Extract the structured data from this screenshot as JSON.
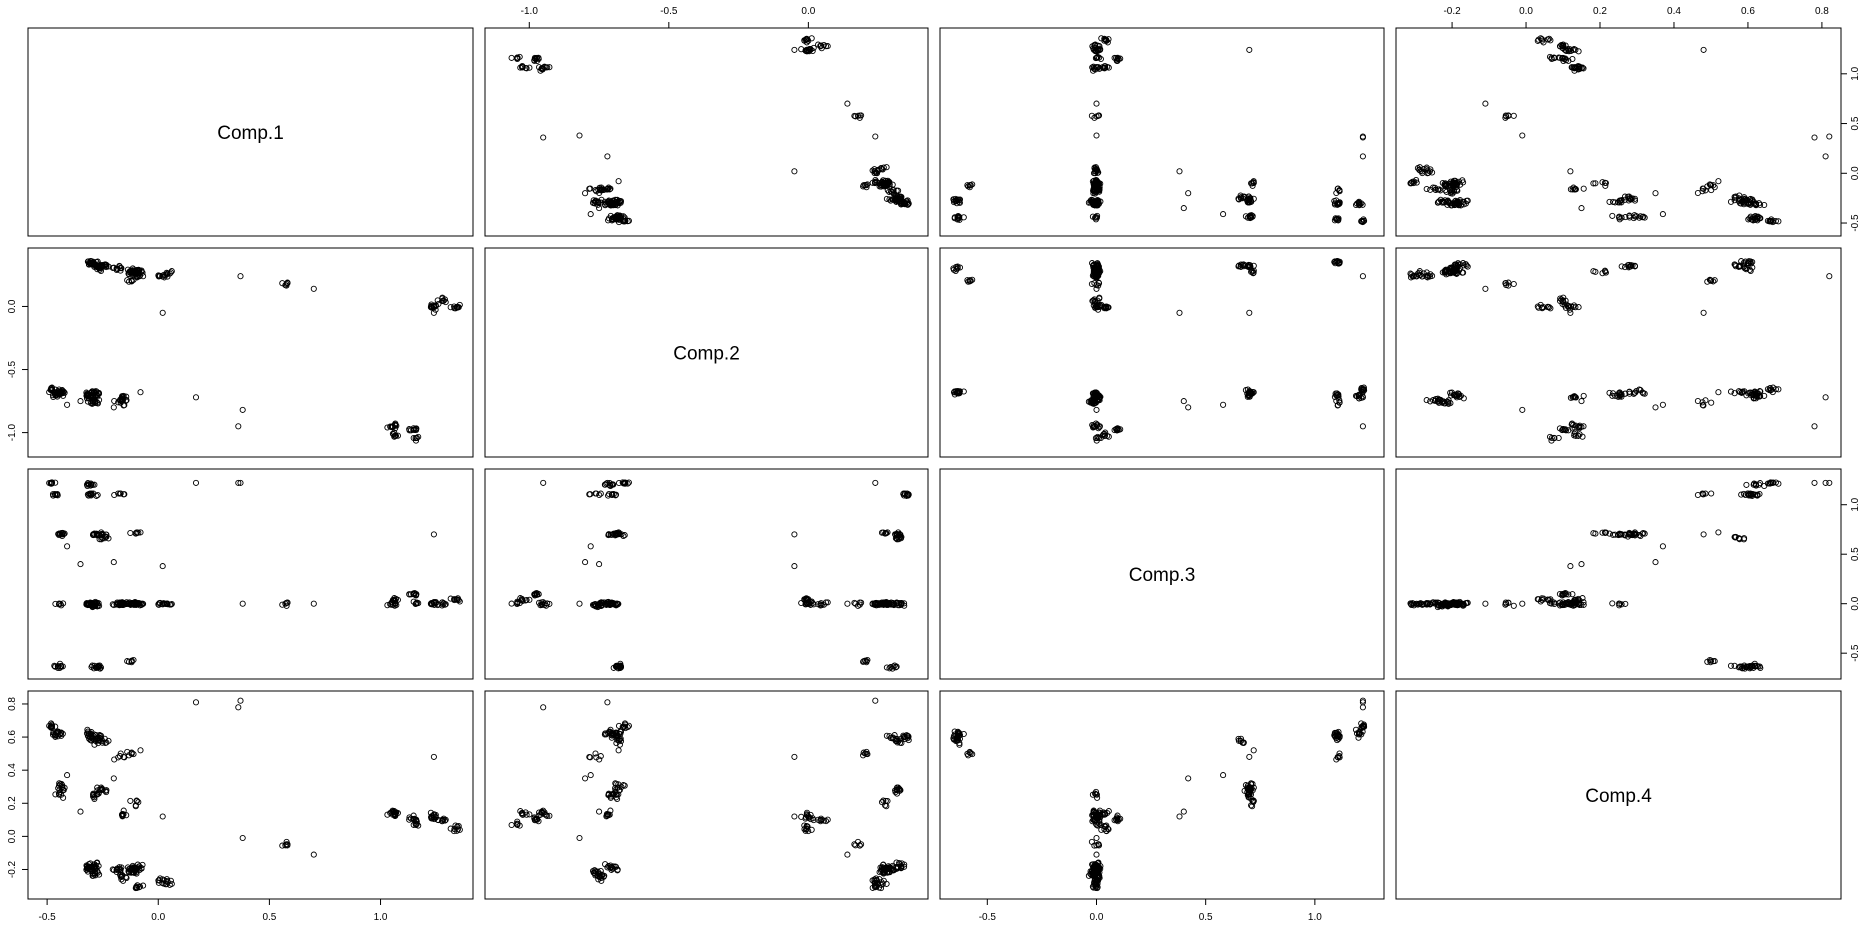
{
  "chart_data": {
    "type": "scatter",
    "variables": [
      "Comp.1",
      "Comp.2",
      "Comp.3",
      "Comp.4"
    ],
    "ranges": {
      "Comp.1": [
        -0.55,
        1.38
      ],
      "Comp.2": [
        -1.13,
        0.4
      ],
      "Comp.3": [
        -0.68,
        1.28
      ],
      "Comp.4": [
        -0.33,
        0.83
      ]
    },
    "ticks": {
      "Comp.1": [
        -0.5,
        0.0,
        0.5,
        1.0
      ],
      "Comp.2": [
        -1.0,
        -0.5,
        0.0
      ],
      "Comp.3": [
        -0.5,
        0.0,
        0.5,
        1.0
      ],
      "Comp.4": [
        -0.2,
        0.0,
        0.2,
        0.4,
        0.6,
        0.8
      ]
    },
    "tick_labels": {
      "Comp.1": [
        "-0.5",
        "0.0",
        "0.5",
        "1.0"
      ],
      "Comp.2": [
        "-1.0",
        "-0.5",
        "0.0"
      ],
      "Comp.3": [
        "-0.5",
        "0.0",
        "0.5",
        "1.0"
      ],
      "Comp.4": [
        "-0.2",
        "0.0",
        "0.2",
        "0.4",
        "0.6",
        "0.8"
      ]
    },
    "clusters": [
      {
        "c1": -0.48,
        "c2": -0.66,
        "c3": 1.22,
        "c4": 0.66,
        "n": 10
      },
      {
        "c1": -0.46,
        "c2": -0.7,
        "c3": 1.1,
        "c4": 0.62,
        "n": 8
      },
      {
        "c1": -0.44,
        "c2": -0.68,
        "c3": 0.7,
        "c4": 0.3,
        "n": 12
      },
      {
        "c1": -0.45,
        "c2": -0.68,
        "c3": -0.63,
        "c4": 0.62,
        "n": 12
      },
      {
        "c1": -0.44,
        "c2": -0.7,
        "c3": 0.0,
        "c4": 0.25,
        "n": 6
      },
      {
        "c1": -0.31,
        "c2": -0.72,
        "c3": 1.2,
        "c4": 0.62,
        "n": 10
      },
      {
        "c1": -0.31,
        "c2": -0.7,
        "c3": 0.0,
        "c4": -0.18,
        "n": 16
      },
      {
        "c1": -0.29,
        "c2": -0.76,
        "c3": -0.02,
        "c4": -0.22,
        "n": 16
      },
      {
        "c1": -0.28,
        "c2": -0.68,
        "c3": -0.64,
        "c4": 0.58,
        "n": 8
      },
      {
        "c1": -0.28,
        "c2": -0.7,
        "c3": 0.7,
        "c4": 0.25,
        "n": 10
      },
      {
        "c1": -0.3,
        "c2": 0.35,
        "c3": 1.1,
        "c4": 0.6,
        "n": 12
      },
      {
        "c1": -0.25,
        "c2": 0.32,
        "c3": 0.7,
        "c4": 0.28,
        "n": 12
      },
      {
        "c1": -0.24,
        "c2": 0.32,
        "c3": 0.66,
        "c4": 0.58,
        "n": 8
      },
      {
        "c1": -0.27,
        "c2": 0.3,
        "c3": -0.64,
        "c4": 0.6,
        "n": 8
      },
      {
        "c1": -0.29,
        "c2": 0.33,
        "c3": 0.0,
        "c4": -0.18,
        "n": 14
      },
      {
        "c1": -0.18,
        "c2": 0.3,
        "c3": 0.0,
        "c4": -0.2,
        "n": 12
      },
      {
        "c1": -0.17,
        "c2": -0.76,
        "c3": 1.1,
        "c4": 0.48,
        "n": 6
      },
      {
        "c1": -0.16,
        "c2": -0.72,
        "c3": 0.0,
        "c4": 0.13,
        "n": 8
      },
      {
        "c1": -0.16,
        "c2": -0.74,
        "c3": 0.0,
        "c4": -0.25,
        "n": 10
      },
      {
        "c1": -0.12,
        "c2": 0.27,
        "c3": 0.0,
        "c4": -0.21,
        "n": 22
      },
      {
        "c1": -0.1,
        "c2": 0.28,
        "c3": 0.0,
        "c4": -0.19,
        "n": 18
      },
      {
        "c1": -0.12,
        "c2": 0.2,
        "c3": -0.58,
        "c4": 0.5,
        "n": 6
      },
      {
        "c1": -0.11,
        "c2": 0.28,
        "c3": 0.72,
        "c4": 0.2,
        "n": 6
      },
      {
        "c1": -0.09,
        "c2": 0.24,
        "c3": 0.0,
        "c4": -0.3,
        "n": 8
      },
      {
        "c1": 0.02,
        "c2": 0.24,
        "c3": 0.0,
        "c4": -0.27,
        "n": 10
      },
      {
        "c1": 0.05,
        "c2": 0.26,
        "c3": 0.0,
        "c4": -0.28,
        "n": 6
      },
      {
        "c1": 0.58,
        "c2": 0.17,
        "c3": 0.0,
        "c4": -0.05,
        "n": 6
      },
      {
        "c1": 1.05,
        "c2": -0.95,
        "c3": 0.0,
        "c4": 0.14,
        "n": 12
      },
      {
        "c1": 1.06,
        "c2": -1.02,
        "c3": 0.04,
        "c4": 0.14,
        "n": 8
      },
      {
        "c1": 1.15,
        "c2": -0.98,
        "c3": 0.1,
        "c4": 0.1,
        "n": 10
      },
      {
        "c1": 1.16,
        "c2": -1.04,
        "c3": 0.0,
        "c4": 0.08,
        "n": 6
      },
      {
        "c1": 1.25,
        "c2": 0.0,
        "c3": 0.0,
        "c4": 0.12,
        "n": 14
      },
      {
        "c1": 1.27,
        "c2": 0.05,
        "c3": 0.0,
        "c4": 0.1,
        "n": 8
      },
      {
        "c1": 1.34,
        "c2": 0.0,
        "c3": 0.04,
        "c4": 0.05,
        "n": 10
      }
    ],
    "outliers": [
      {
        "c1": 0.17,
        "c2": -0.72,
        "c3": 1.22,
        "c4": 0.81
      },
      {
        "c1": 0.36,
        "c2": -0.95,
        "c3": 1.22,
        "c4": 0.78
      },
      {
        "c1": 0.38,
        "c2": -0.82,
        "c3": 0.0,
        "c4": -0.01
      },
      {
        "c1": 0.7,
        "c2": 0.14,
        "c3": 0.0,
        "c4": -0.11
      },
      {
        "c1": 1.24,
        "c2": -0.05,
        "c3": 0.7,
        "c4": 0.48
      },
      {
        "c1": -0.35,
        "c2": -0.75,
        "c3": 0.4,
        "c4": 0.15
      },
      {
        "c1": -0.2,
        "c2": -0.8,
        "c3": 0.42,
        "c4": 0.35
      },
      {
        "c1": -0.08,
        "c2": -0.68,
        "c3": 0.72,
        "c4": 0.52
      },
      {
        "c1": 0.37,
        "c2": 0.24,
        "c3": 1.22,
        "c4": 0.82
      },
      {
        "c1": -0.41,
        "c2": -0.78,
        "c3": 0.58,
        "c4": 0.37
      },
      {
        "c1": 0.02,
        "c2": -0.05,
        "c3": 0.38,
        "c4": 0.12
      }
    ]
  }
}
